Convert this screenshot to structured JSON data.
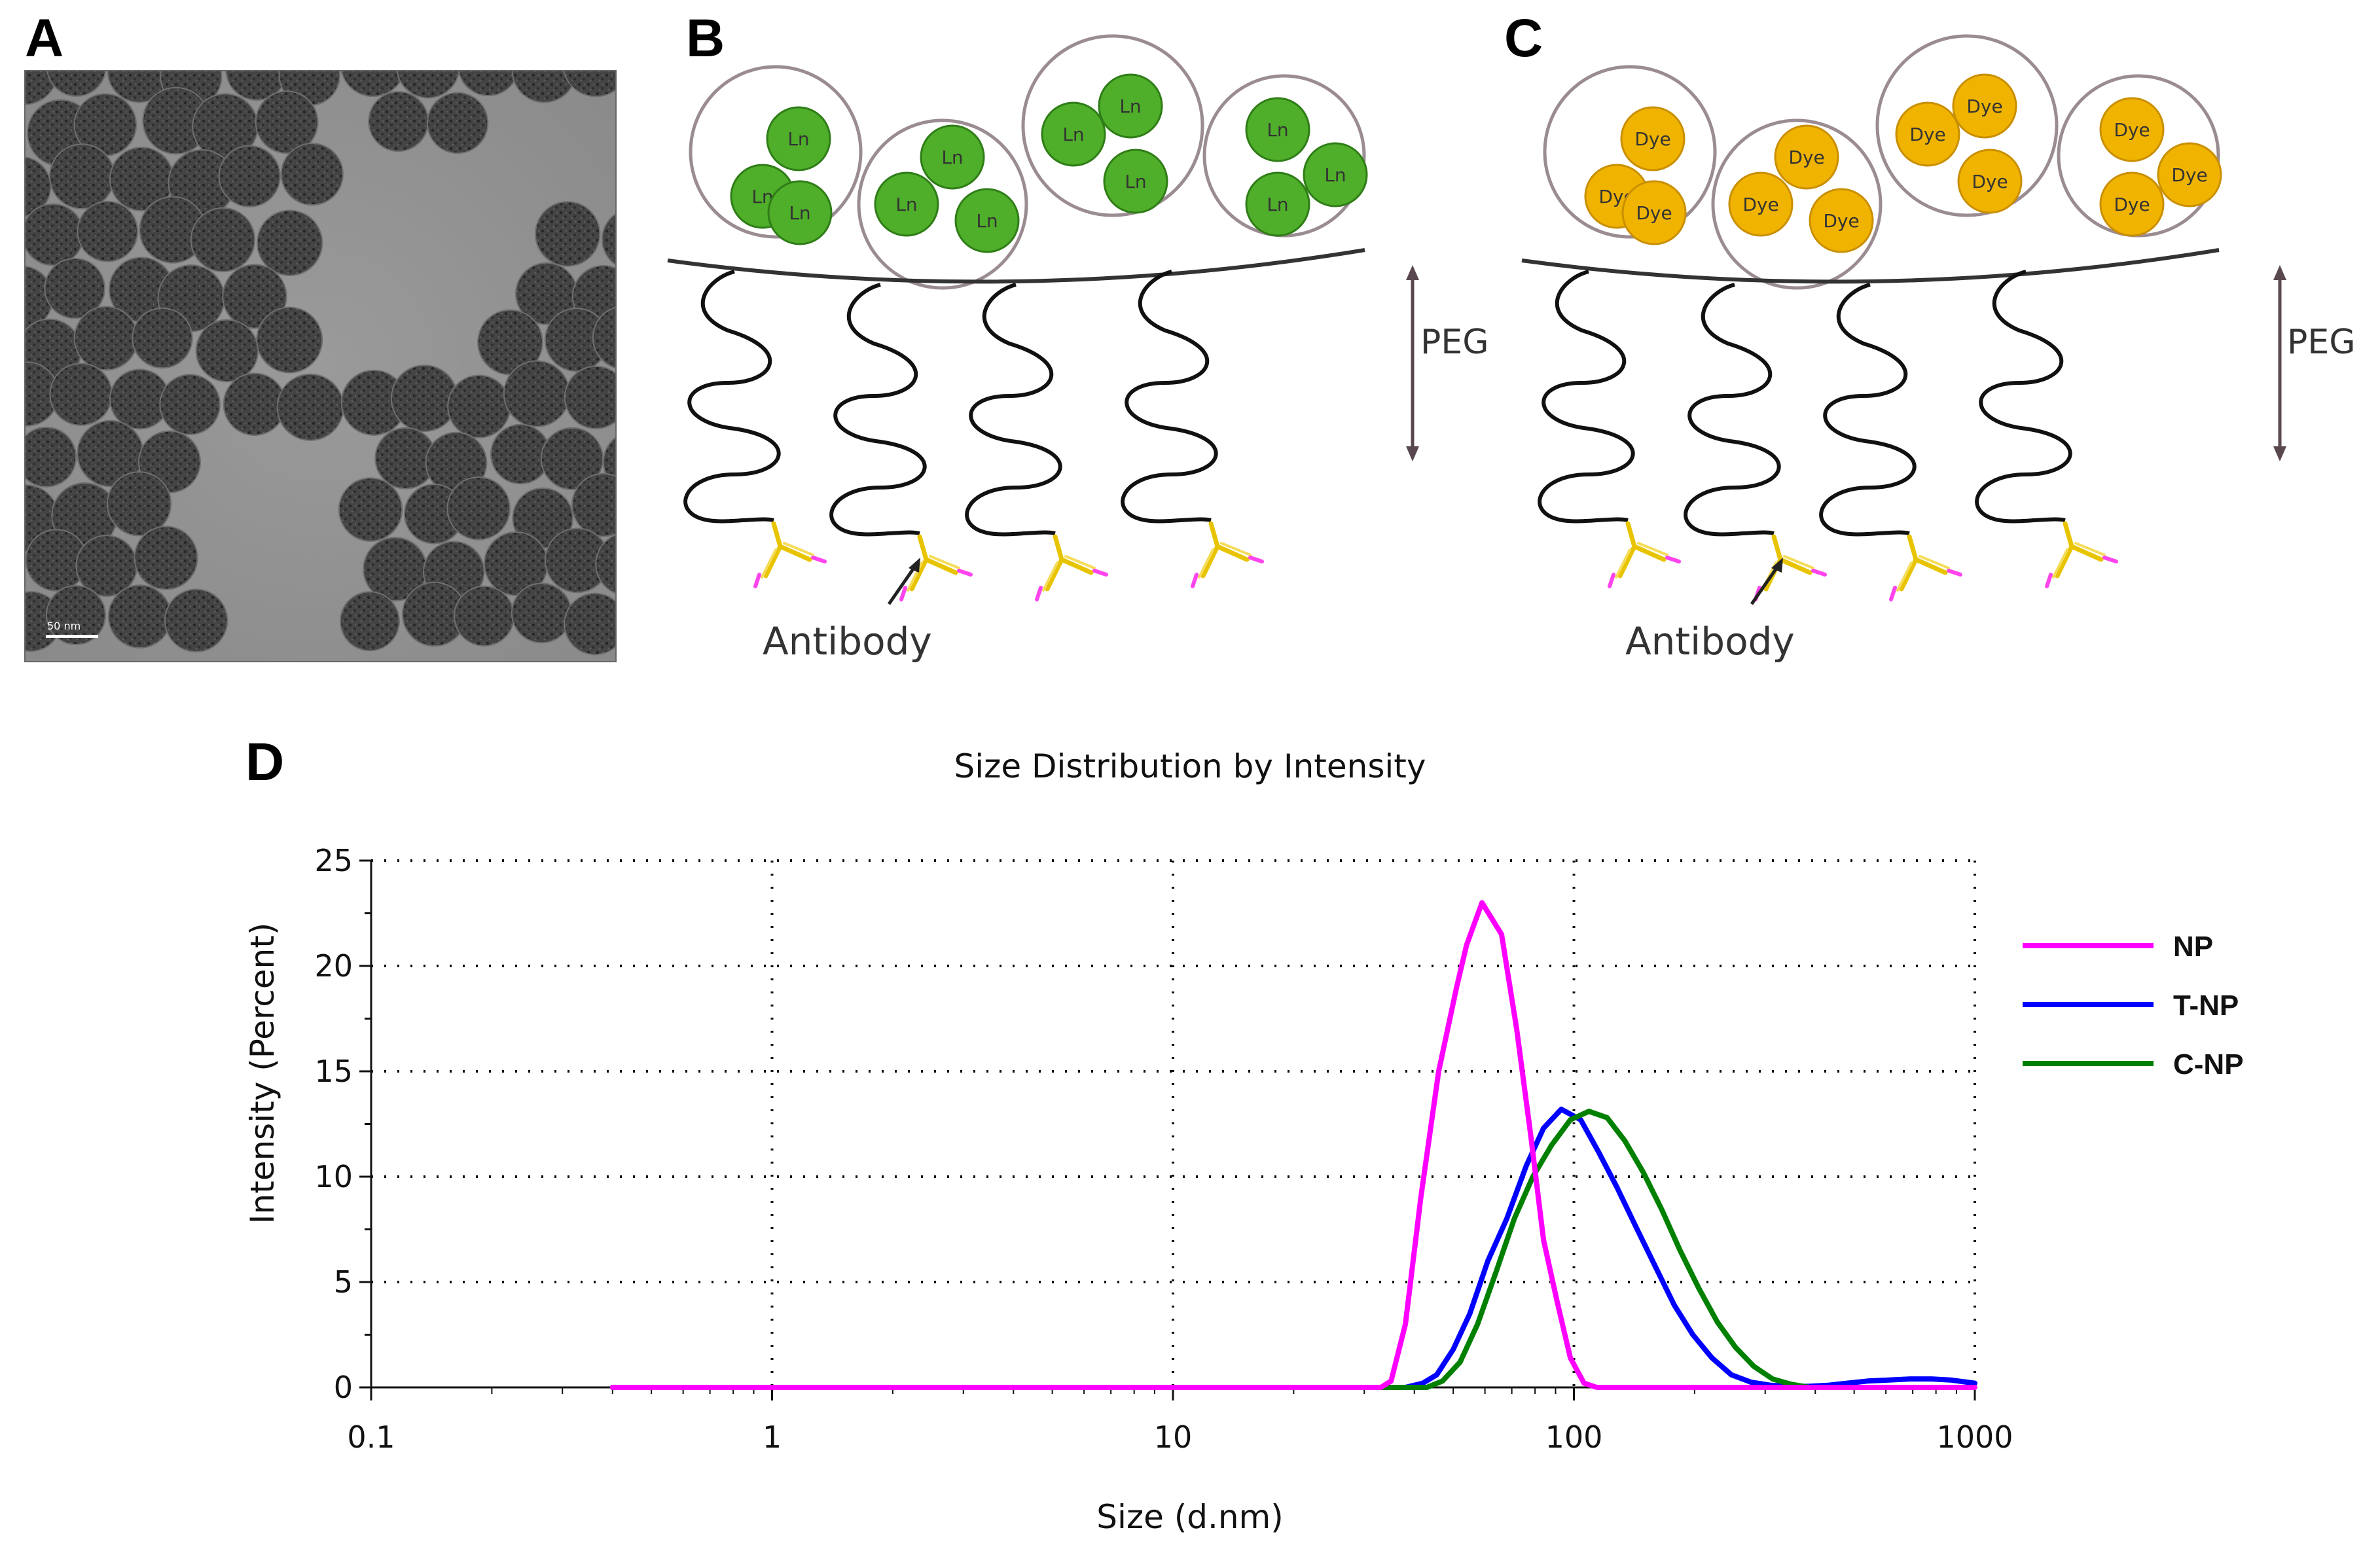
{
  "panels": {
    "a": {
      "letter": "A",
      "scale_label": "50 nm"
    },
    "b": {
      "letter": "B",
      "core_label": "Ln",
      "peg_label": "PEG",
      "antibody_label": "Antibody",
      "core_color": "#4fae2a",
      "core_edge": "#2f7d17"
    },
    "c": {
      "letter": "C",
      "core_label": "Dye",
      "peg_label": "PEG",
      "antibody_label": "Antibody",
      "core_color": "#f0b400",
      "core_edge": "#c98f00"
    },
    "d": {
      "letter": "D"
    }
  },
  "chart_data": {
    "type": "line",
    "title": "Size Distribution by Intensity",
    "xlabel": "Size (d.nm)",
    "ylabel": "Intensity (Percent)",
    "xscale": "log",
    "xlim": [
      0.1,
      1000
    ],
    "ylim": [
      0,
      25
    ],
    "xticks": [
      0.1,
      1,
      10,
      100,
      1000
    ],
    "xtick_labels": [
      "0.1",
      "1",
      "10",
      "100",
      "1000"
    ],
    "yticks": [
      0,
      5,
      10,
      15,
      20,
      25
    ],
    "ytick_labels": [
      "0",
      "5",
      "10",
      "15",
      "20",
      "25"
    ],
    "grid": true,
    "legend_position": "right",
    "series": [
      {
        "name": "NP",
        "color": "#ff00ff",
        "x": [
          0.4,
          33,
          35,
          38,
          41.5,
          46,
          51,
          54,
          59,
          66,
          72,
          78,
          84,
          91,
          98,
          106,
          114,
          122,
          130,
          140,
          160,
          200,
          300,
          500,
          1000
        ],
        "y": [
          0,
          0,
          0.3,
          3,
          9,
          15,
          19,
          21,
          23,
          21.5,
          17,
          12,
          7,
          4,
          1.4,
          0.2,
          0,
          0,
          0,
          0,
          0,
          0,
          0,
          0,
          0
        ]
      },
      {
        "name": "T-NP",
        "color": "#0000ff",
        "x": [
          0.4,
          38,
          42,
          45.5,
          50,
          55,
          61,
          68,
          76,
          84,
          93,
          104,
          115,
          128,
          143,
          160,
          178,
          198,
          221,
          247,
          276,
          310,
          345,
          385,
          430,
          480,
          540,
          610,
          690,
          780,
          870,
          1000
        ],
        "y": [
          0,
          0,
          0.2,
          0.6,
          1.8,
          3.5,
          6,
          8,
          10.5,
          12.3,
          13.2,
          12.7,
          11.2,
          9.5,
          7.6,
          5.7,
          3.9,
          2.5,
          1.4,
          0.6,
          0.25,
          0.1,
          0.05,
          0.05,
          0.1,
          0.2,
          0.3,
          0.35,
          0.4,
          0.4,
          0.35,
          0.2
        ]
      },
      {
        "name": "C-NP",
        "color": "#008000",
        "x": [
          0.4,
          40,
          43,
          47,
          52,
          57.5,
          64,
          71,
          79,
          88,
          98,
          109,
          121,
          134,
          149,
          166,
          184,
          205,
          228,
          253,
          281,
          313,
          348,
          387,
          420,
          1000
        ],
        "y": [
          0,
          0,
          0,
          0.3,
          1.2,
          3,
          5.5,
          8,
          10,
          11.5,
          12.7,
          13.1,
          12.8,
          11.7,
          10.2,
          8.4,
          6.5,
          4.7,
          3.1,
          1.9,
          1,
          0.4,
          0.15,
          0,
          0,
          0
        ]
      }
    ]
  }
}
